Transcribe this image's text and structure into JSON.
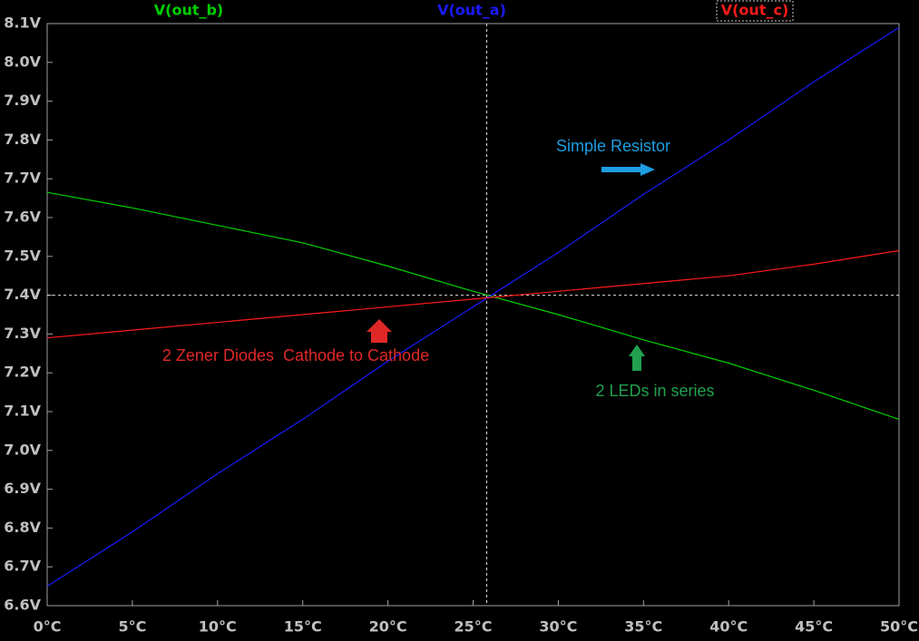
{
  "chart_data": {
    "type": "line",
    "x": [
      0,
      5,
      10,
      15,
      20,
      25,
      30,
      35,
      40,
      45,
      50
    ],
    "series": [
      {
        "name": "V(out_b)",
        "color": "#00d000",
        "values": [
          7.665,
          7.625,
          7.58,
          7.535,
          7.475,
          7.41,
          7.35,
          7.285,
          7.225,
          7.155,
          7.08
        ]
      },
      {
        "name": "V(out_a)",
        "color": "#1a1aff",
        "values": [
          6.65,
          6.79,
          6.94,
          7.08,
          7.23,
          7.37,
          7.51,
          7.66,
          7.8,
          7.95,
          8.09
        ]
      },
      {
        "name": "V(out_c)",
        "color": "#ff1a1a",
        "values": [
          7.29,
          7.31,
          7.33,
          7.35,
          7.37,
          7.39,
          7.41,
          7.43,
          7.45,
          7.48,
          7.515
        ]
      }
    ],
    "xlim": [
      0,
      50
    ],
    "xticks": [
      {
        "value": 0,
        "label": "0°C"
      },
      {
        "value": 5,
        "label": "5°C"
      },
      {
        "value": 10,
        "label": "10°C"
      },
      {
        "value": 15,
        "label": "15°C"
      },
      {
        "value": 20,
        "label": "20°C"
      },
      {
        "value": 25,
        "label": "25°C"
      },
      {
        "value": 30,
        "label": "30°C"
      },
      {
        "value": 35,
        "label": "35°C"
      },
      {
        "value": 40,
        "label": "40°C"
      },
      {
        "value": 45,
        "label": "45°C"
      },
      {
        "value": 50,
        "label": "50°C"
      }
    ],
    "ylim": [
      6.6,
      8.1
    ],
    "yticks": [
      {
        "value": 6.6,
        "label": "6.6V"
      },
      {
        "value": 6.7,
        "label": "6.7V"
      },
      {
        "value": 6.8,
        "label": "6.8V"
      },
      {
        "value": 6.9,
        "label": "6.9V"
      },
      {
        "value": 7.0,
        "label": "7.0V"
      },
      {
        "value": 7.1,
        "label": "7.1V"
      },
      {
        "value": 7.2,
        "label": "7.2V"
      },
      {
        "value": 7.3,
        "label": "7.3V"
      },
      {
        "value": 7.4,
        "label": "7.4V"
      },
      {
        "value": 7.5,
        "label": "7.5V"
      },
      {
        "value": 7.6,
        "label": "7.6V"
      },
      {
        "value": 7.7,
        "label": "7.7V"
      },
      {
        "value": 7.8,
        "label": "7.8V"
      },
      {
        "value": 7.9,
        "label": "7.9V"
      },
      {
        "value": 8.0,
        "label": "8.0V"
      },
      {
        "value": 8.1,
        "label": "8.1V"
      }
    ],
    "cursor_x": 25.8,
    "cursor_y": 7.4,
    "annotations": [
      {
        "text": "Simple Resistor",
        "color": "#1e9ee0"
      },
      {
        "text": "2 Zener Diodes  Cathode to Cathode",
        "color": "#e02828"
      },
      {
        "text": "2 LEDs in series",
        "color": "#22a050"
      }
    ]
  }
}
